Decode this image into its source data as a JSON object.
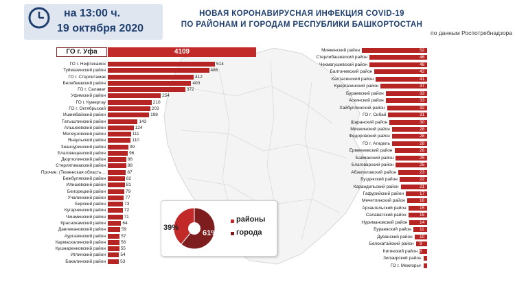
{
  "header": {
    "time": "на 13:00 ч.",
    "date": "19 октября 2020",
    "title_line1": "НОВАЯ КОРОНАВИРУСНАЯ ИНФЕКЦИЯ COVID-19",
    "title_line2": "ПО РАЙОНАМ И ГОРОДАМ РЕСПУБЛИКИ БАШКОРТОСТАН",
    "source": "по данным Роспотребнадзора"
  },
  "colors": {
    "bar": "#b72424",
    "bar_ufa": "#c22a2a",
    "header_text": "#1f3f6f",
    "header_bg": "#dfe6ef",
    "pie_districts": "#c22a2a",
    "pie_cities": "#7d1d1d"
  },
  "chart_data": [
    {
      "type": "bar",
      "orientation": "horizontal",
      "highlight": {
        "category": "ГО г. Уфа",
        "value": 4109
      },
      "categories": [
        "ГО г. Нефтекамск",
        "Туймазинский район",
        "ГО г. Стерлитамак",
        "Белебеевский район",
        "ГО г. Салават",
        "Уфимский район",
        "ГО г. Кумертау",
        "ГО г. Октябрьский",
        "Ишимбайский район",
        "Татышлинский район",
        "Альшеевский район",
        "Мелеузовский район",
        "Янаульский район",
        "Зианчуринский район",
        "Благовещенский район",
        "Дюртюлинский район",
        "Стерлитамакский район",
        "Прочие: (Тюменская область…",
        "Бижбулякский район",
        "Илишевский район",
        "Белорецкий район",
        "Учалинский район",
        "Бирский район",
        "Кугарчинский район",
        "Чишминский район",
        "Краснокамский район",
        "Давлекановский район",
        "Аургазинский район",
        "Кармаскалинский район",
        "Кушнаренковский район",
        "Иглинский район",
        "Бакалинский район"
      ],
      "values": [
        514,
        486,
        412,
        400,
        372,
        254,
        210,
        203,
        198,
        143,
        124,
        111,
        110,
        99,
        96,
        88,
        88,
        87,
        82,
        81,
        79,
        77,
        73,
        72,
        71,
        64,
        59,
        57,
        56,
        55,
        54,
        53
      ]
    },
    {
      "type": "bar",
      "orientation": "horizontal",
      "categories": [
        "Миякинский район",
        "Стерлибашевский район",
        "Чекмагушевский район",
        "Балтачевский район",
        "Калтасинский район",
        "Куюргазинский район",
        "Бураевский район",
        "Аскинский район",
        "Хайбуллинский район",
        "ГО г. Сибай",
        "Шаранский район",
        "Мишкинский район",
        "Федоровский район",
        "ГО г. Агидель",
        "Ермекеевский район",
        "Баймакский район",
        "Благоварский район",
        "Абзелиловский район",
        "Буздякский район",
        "Караидельский район",
        "Гафурийский район",
        "Мечетлинский район",
        "Архангельский район",
        "Салаватский район",
        "Нуримановский район",
        "Бураевский район",
        "Дуванский район",
        "Белокатайский район",
        "Кигинский район",
        "Зилаирский район",
        "ГО г. Межгорье"
      ],
      "values": [
        52,
        46,
        46,
        42,
        41,
        37,
        33,
        33,
        32,
        31,
        30,
        28,
        28,
        28,
        26,
        25,
        25,
        23,
        22,
        21,
        17,
        16,
        15,
        15,
        14,
        11,
        10,
        9,
        6,
        3,
        3
      ]
    },
    {
      "type": "pie",
      "slices": [
        {
          "name": "районы",
          "value": 39,
          "label": "39%"
        },
        {
          "name": "города",
          "value": 61,
          "label": "61%"
        }
      ]
    }
  ]
}
